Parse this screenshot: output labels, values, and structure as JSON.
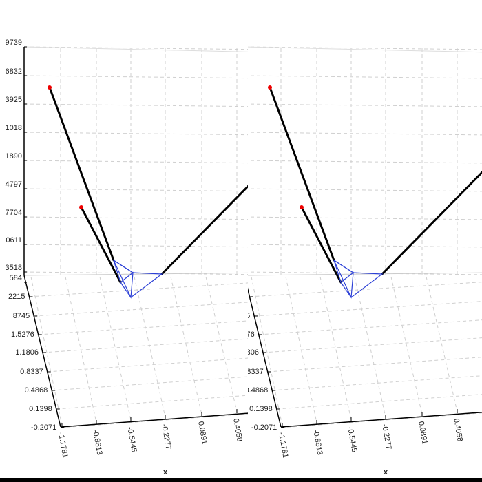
{
  "axes": {
    "back_ticks": [
      "9739",
      "6832",
      "3925",
      "1018",
      "1890",
      "4797",
      "7704",
      "0611",
      "3518",
      "584"
    ],
    "depth_ticks": [
      "2215",
      "8745",
      "1.5276",
      "1.1806",
      "0.8337",
      "0.4868",
      "0.1398",
      "-0.2071"
    ],
    "x_ticks": [
      "-1.1781",
      "-0.8613",
      "-0.5445",
      "-0.2277",
      "0.0891",
      "0.4058"
    ],
    "x_label": "x"
  }
}
